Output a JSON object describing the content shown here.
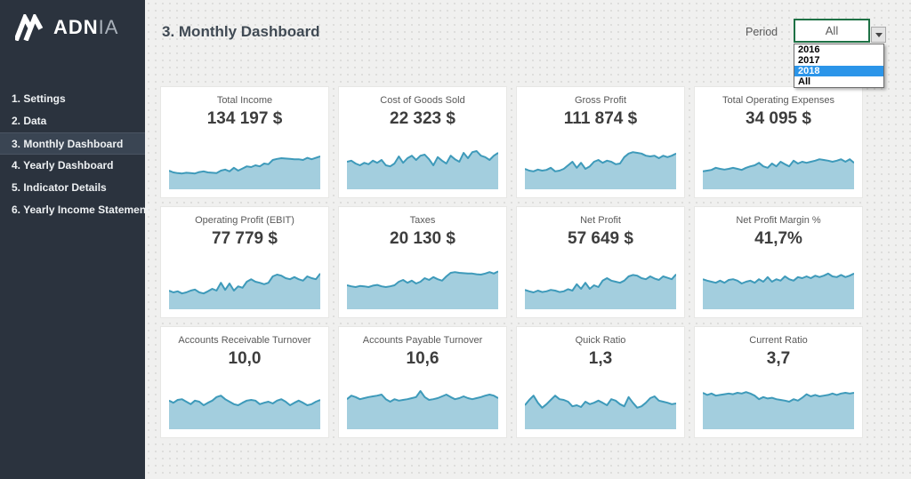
{
  "app": {
    "title": "3. Monthly Dashboard"
  },
  "sidebar": {
    "logo": {
      "brand_bold": "ADN",
      "brand_light": "IA"
    },
    "active_index": 2,
    "items": [
      {
        "label": "1. Settings"
      },
      {
        "label": "2. Data"
      },
      {
        "label": "3. Monthly Dashboard"
      },
      {
        "label": "4. Yearly Dashboard"
      },
      {
        "label": "5. Indicator Details"
      },
      {
        "label": "6. Yearly Income Statement"
      }
    ]
  },
  "period": {
    "label": "Period",
    "selected_value": "All",
    "dropdown": {
      "open": true,
      "options": [
        "2016",
        "2017",
        "2018",
        "All"
      ],
      "highlighted_index": 2
    }
  },
  "cards": [
    {
      "title": "Total Income",
      "value": "134 197 $",
      "sparkline": [
        0.3,
        0.25,
        0.23,
        0.22,
        0.24,
        0.23,
        0.22,
        0.26,
        0.28,
        0.25,
        0.24,
        0.23,
        0.3,
        0.33,
        0.28,
        0.38,
        0.3,
        0.36,
        0.42,
        0.4,
        0.45,
        0.42,
        0.5,
        0.48,
        0.6,
        0.63,
        0.65,
        0.64,
        0.63,
        0.62,
        0.62,
        0.6,
        0.66,
        0.62,
        0.66,
        0.7
      ]
    },
    {
      "title": "Cost of Goods Sold",
      "value": "22 323 $",
      "sparkline": [
        0.55,
        0.58,
        0.5,
        0.45,
        0.52,
        0.48,
        0.58,
        0.52,
        0.6,
        0.45,
        0.42,
        0.5,
        0.7,
        0.52,
        0.65,
        0.72,
        0.6,
        0.72,
        0.75,
        0.62,
        0.45,
        0.68,
        0.58,
        0.5,
        0.72,
        0.62,
        0.55,
        0.8,
        0.65,
        0.82,
        0.85,
        0.72,
        0.68,
        0.6,
        0.72,
        0.8
      ]
    },
    {
      "title": "Gross Profit",
      "value": "111 874 $",
      "sparkline": [
        0.35,
        0.3,
        0.28,
        0.33,
        0.3,
        0.32,
        0.38,
        0.28,
        0.3,
        0.35,
        0.45,
        0.55,
        0.38,
        0.52,
        0.35,
        0.42,
        0.55,
        0.6,
        0.52,
        0.58,
        0.55,
        0.48,
        0.5,
        0.68,
        0.78,
        0.82,
        0.8,
        0.78,
        0.72,
        0.7,
        0.72,
        0.65,
        0.72,
        0.68,
        0.72,
        0.78
      ]
    },
    {
      "title": "Total Operating Expenses",
      "value": "34 095 $",
      "sparkline": [
        0.28,
        0.3,
        0.32,
        0.38,
        0.35,
        0.33,
        0.35,
        0.38,
        0.35,
        0.32,
        0.38,
        0.42,
        0.45,
        0.52,
        0.42,
        0.38,
        0.5,
        0.42,
        0.55,
        0.48,
        0.42,
        0.58,
        0.5,
        0.55,
        0.52,
        0.55,
        0.58,
        0.62,
        0.6,
        0.58,
        0.55,
        0.58,
        0.62,
        0.55,
        0.62,
        0.52
      ]
    },
    {
      "title": "Operating Profit (EBIT)",
      "value": "77 779 $",
      "sparkline": [
        0.3,
        0.25,
        0.28,
        0.22,
        0.25,
        0.3,
        0.33,
        0.25,
        0.22,
        0.28,
        0.35,
        0.3,
        0.52,
        0.32,
        0.5,
        0.3,
        0.42,
        0.38,
        0.55,
        0.62,
        0.55,
        0.52,
        0.48,
        0.52,
        0.7,
        0.75,
        0.72,
        0.65,
        0.62,
        0.68,
        0.62,
        0.58,
        0.7,
        0.65,
        0.62,
        0.78
      ]
    },
    {
      "title": "Taxes",
      "value": "20 130 $",
      "sparkline": [
        0.45,
        0.42,
        0.4,
        0.43,
        0.42,
        0.4,
        0.44,
        0.46,
        0.42,
        0.4,
        0.42,
        0.45,
        0.55,
        0.6,
        0.52,
        0.58,
        0.5,
        0.55,
        0.65,
        0.6,
        0.68,
        0.62,
        0.58,
        0.7,
        0.8,
        0.82,
        0.8,
        0.79,
        0.78,
        0.78,
        0.76,
        0.75,
        0.78,
        0.82,
        0.78,
        0.84
      ]
    },
    {
      "title": "Net Profit",
      "value": "57 649 $",
      "sparkline": [
        0.32,
        0.28,
        0.25,
        0.3,
        0.26,
        0.28,
        0.32,
        0.3,
        0.26,
        0.28,
        0.34,
        0.3,
        0.48,
        0.35,
        0.52,
        0.35,
        0.45,
        0.4,
        0.58,
        0.65,
        0.58,
        0.55,
        0.52,
        0.58,
        0.7,
        0.74,
        0.72,
        0.65,
        0.62,
        0.7,
        0.64,
        0.6,
        0.7,
        0.66,
        0.62,
        0.76
      ]
    },
    {
      "title": "Net Profit Margin %",
      "value": "41,7%",
      "sparkline": [
        0.62,
        0.58,
        0.55,
        0.52,
        0.58,
        0.52,
        0.6,
        0.62,
        0.58,
        0.5,
        0.55,
        0.58,
        0.52,
        0.62,
        0.55,
        0.68,
        0.55,
        0.62,
        0.58,
        0.7,
        0.62,
        0.58,
        0.68,
        0.65,
        0.7,
        0.65,
        0.72,
        0.68,
        0.72,
        0.78,
        0.7,
        0.68,
        0.74,
        0.68,
        0.72,
        0.78
      ]
    },
    {
      "title": "Accounts Receivable Turnover",
      "value": "10,0",
      "sparkline": [
        0.58,
        0.52,
        0.6,
        0.62,
        0.55,
        0.48,
        0.58,
        0.55,
        0.45,
        0.52,
        0.58,
        0.68,
        0.72,
        0.62,
        0.55,
        0.48,
        0.45,
        0.52,
        0.58,
        0.6,
        0.58,
        0.48,
        0.52,
        0.55,
        0.5,
        0.58,
        0.62,
        0.55,
        0.45,
        0.52,
        0.58,
        0.52,
        0.45,
        0.48,
        0.55,
        0.6
      ]
    },
    {
      "title": "Accounts Payable Turnover",
      "value": "10,6",
      "sparkline": [
        0.62,
        0.72,
        0.68,
        0.62,
        0.65,
        0.68,
        0.7,
        0.72,
        0.75,
        0.62,
        0.55,
        0.62,
        0.58,
        0.6,
        0.62,
        0.65,
        0.68,
        0.85,
        0.68,
        0.6,
        0.62,
        0.65,
        0.7,
        0.75,
        0.68,
        0.62,
        0.65,
        0.7,
        0.65,
        0.62,
        0.65,
        0.68,
        0.72,
        0.75,
        0.72,
        0.65
      ]
    },
    {
      "title": "Quick Ratio",
      "value": "1,3",
      "sparkline": [
        0.45,
        0.6,
        0.72,
        0.52,
        0.38,
        0.48,
        0.6,
        0.72,
        0.62,
        0.6,
        0.55,
        0.42,
        0.45,
        0.4,
        0.55,
        0.48,
        0.52,
        0.58,
        0.52,
        0.45,
        0.62,
        0.58,
        0.48,
        0.42,
        0.68,
        0.52,
        0.38,
        0.42,
        0.52,
        0.65,
        0.7,
        0.58,
        0.55,
        0.52,
        0.48,
        0.5
      ]
    },
    {
      "title": "Current Ratio",
      "value": "3,7",
      "sparkline": [
        0.8,
        0.74,
        0.78,
        0.72,
        0.74,
        0.76,
        0.78,
        0.76,
        0.8,
        0.78,
        0.82,
        0.78,
        0.72,
        0.62,
        0.68,
        0.64,
        0.66,
        0.62,
        0.6,
        0.58,
        0.55,
        0.62,
        0.58,
        0.66,
        0.76,
        0.7,
        0.74,
        0.7,
        0.72,
        0.74,
        0.78,
        0.74,
        0.78,
        0.8,
        0.78,
        0.8
      ]
    }
  ],
  "colors": {
    "sidebar_bg": "#2b333e",
    "sidebar_active_bg": "#3a4553",
    "spark_fill": "#a3cede",
    "spark_stroke": "#3e9aba",
    "dropdown_highlight": "#2b95e9",
    "excel_green": "#1e7145",
    "page_bg": "#f0f0ef"
  }
}
